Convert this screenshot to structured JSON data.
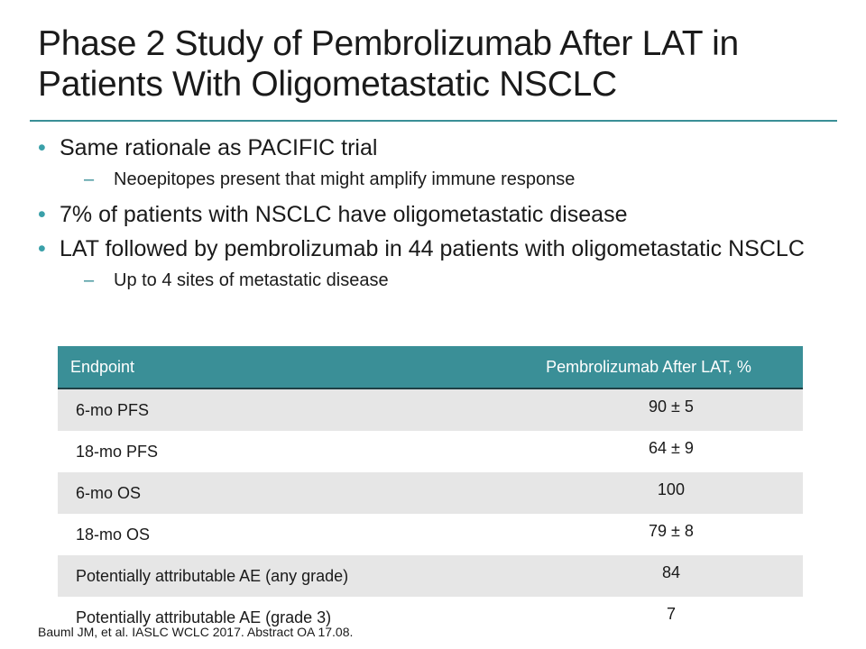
{
  "title": "Phase 2 Study of Pembrolizumab After LAT in Patients With Oligometastatic NSCLC",
  "bullets": [
    {
      "text": "Same rationale as PACIFIC trial",
      "sub": "Neoepitopes present that might amplify immune response"
    },
    {
      "text": "7% of patients with NSCLC have oligometastatic disease"
    },
    {
      "text": "LAT followed by pembrolizumab in 44 patients with oligometastatic NSCLC",
      "sub": "Up to 4 sites of metastatic disease"
    }
  ],
  "bullet_glyph": "•",
  "sub_glyph": "–",
  "table": {
    "headers": [
      "Endpoint",
      "Pembrolizumab After LAT, %"
    ],
    "rows": [
      [
        "6-mo PFS",
        "90 ± 5"
      ],
      [
        "18-mo PFS",
        "64 ± 9"
      ],
      [
        "6-mo OS",
        "100"
      ],
      [
        "18-mo OS",
        "79 ± 8"
      ],
      [
        "Potentially attributable AE (any grade)",
        "84"
      ],
      [
        "Potentially attributable AE (grade 3)",
        "7"
      ]
    ]
  },
  "footer": "Bauml JM, et al. IASLC WCLC 2017. Abstract OA 17.08.",
  "colors": {
    "accent": "#3a8f97",
    "row_alt": "#e6e6e6"
  }
}
